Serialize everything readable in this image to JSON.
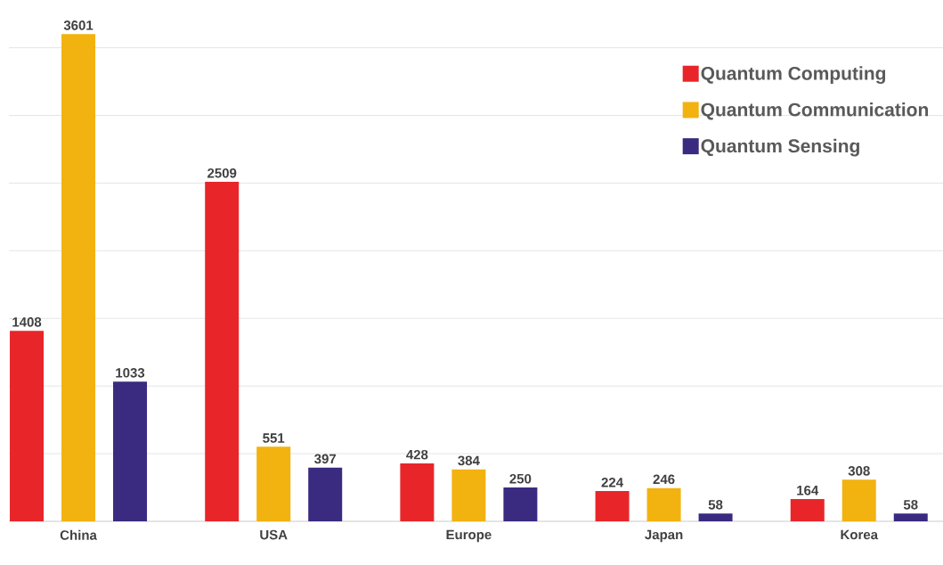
{
  "chart_data": {
    "type": "bar",
    "categories": [
      "China",
      "USA",
      "Europe",
      "Japan",
      "Korea"
    ],
    "series": [
      {
        "name": "Quantum Computing",
        "color": "#e8262a",
        "values": [
          1408,
          2509,
          428,
          224,
          164
        ]
      },
      {
        "name": "Quantum Communication",
        "color": "#f2b20f",
        "values": [
          3601,
          551,
          384,
          246,
          308
        ]
      },
      {
        "name": "Quantum Sensing",
        "color": "#3a2a80",
        "values": [
          1033,
          397,
          250,
          58,
          58
        ]
      }
    ],
    "grid": "y",
    "legend": "top right",
    "tick_labels": "x",
    "data_labels": true
  }
}
